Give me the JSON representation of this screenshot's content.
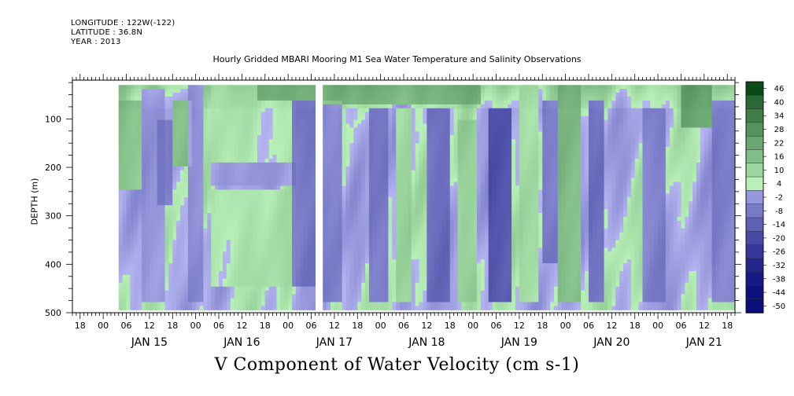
{
  "header": {
    "longitude": "LONGITUDE : 122W(-122)",
    "latitude": "LATITUDE : 36.8N",
    "year": "YEAR : 2013"
  },
  "chart_data": {
    "type": "heatmap",
    "title": "Hourly Gridded MBARI Mooring M1 Sea Water Temperature and Salinity Observations",
    "variable": "V Component of Water Velocity (cm s-1)",
    "ylabel": "DEPTH (m)",
    "ylim": [
      500,
      20
    ],
    "y_inverted": true,
    "y_ticks": [
      100,
      200,
      300,
      400,
      500
    ],
    "x_hours_per_day": 24,
    "x_range_hours": [
      -8,
      164
    ],
    "x_hour_tick_labels": [
      "00",
      "06",
      "12",
      "18"
    ],
    "x_day_labels": [
      "JAN 15",
      "JAN 16",
      "JAN 17",
      "JAN 18",
      "JAN 19",
      "JAN 20",
      "JAN 21"
    ],
    "data_start_hour": 4,
    "data_end_hour": 165,
    "data_depth_range": [
      30,
      490
    ],
    "gap_hours": [
      55,
      57
    ],
    "colorbar": {
      "levels": [
        -50,
        -44,
        -38,
        -32,
        -26,
        -20,
        -14,
        -8,
        -2,
        4,
        10,
        16,
        22,
        28,
        34,
        40,
        46
      ],
      "labels": [
        "46",
        "40",
        "34",
        "28",
        "22",
        "16",
        "10",
        "4",
        "-2",
        "-8",
        "-14",
        "-20",
        "-26",
        "-32",
        "-38",
        "-44",
        "-50"
      ],
      "colors": {
        "low": "#0b0f7a",
        "mid_low": "#b4b4f0",
        "mid_high": "#b8f0b8",
        "high": "#0a4a18"
      }
    },
    "regions": [
      {
        "t0": 4,
        "t1": 10,
        "d0": 60,
        "d1": 250,
        "v": 12
      },
      {
        "t0": 10,
        "t1": 16,
        "d0": 40,
        "d1": 480,
        "v": -6
      },
      {
        "t0": 14,
        "t1": 18,
        "d0": 100,
        "d1": 280,
        "v": -10
      },
      {
        "t0": 18,
        "t1": 23,
        "d0": 60,
        "d1": 200,
        "v": 14
      },
      {
        "t0": 22,
        "t1": 26,
        "d0": 30,
        "d1": 480,
        "v": -8
      },
      {
        "t0": 28,
        "t1": 50,
        "d0": 30,
        "d1": 190,
        "v": 3
      },
      {
        "t0": 28,
        "t1": 50,
        "d0": 190,
        "d1": 240,
        "v": -4
      },
      {
        "t0": 28,
        "t1": 50,
        "d0": 250,
        "d1": 450,
        "v": 4
      },
      {
        "t0": 40,
        "t1": 56,
        "d0": 25,
        "d1": 60,
        "v": 16
      },
      {
        "t0": 49,
        "t1": 55,
        "d0": 60,
        "d1": 450,
        "v": -12
      },
      {
        "t0": 57,
        "t1": 62,
        "d0": 60,
        "d1": 480,
        "v": -10
      },
      {
        "t0": 57,
        "t1": 98,
        "d0": 25,
        "d1": 70,
        "v": 14
      },
      {
        "t0": 69,
        "t1": 74,
        "d0": 80,
        "d1": 480,
        "v": -12
      },
      {
        "t0": 76,
        "t1": 80,
        "d0": 80,
        "d1": 480,
        "v": 8
      },
      {
        "t0": 84,
        "t1": 90,
        "d0": 80,
        "d1": 480,
        "v": -14
      },
      {
        "t0": 92,
        "t1": 97,
        "d0": 100,
        "d1": 480,
        "v": 8
      },
      {
        "t0": 100,
        "t1": 106,
        "d0": 80,
        "d1": 480,
        "v": -20
      },
      {
        "t0": 108,
        "t1": 113,
        "d0": 30,
        "d1": 480,
        "v": 6
      },
      {
        "t0": 114,
        "t1": 118,
        "d0": 60,
        "d1": 400,
        "v": -12
      },
      {
        "t0": 118,
        "t1": 124,
        "d0": 30,
        "d1": 480,
        "v": 14
      },
      {
        "t0": 126,
        "t1": 130,
        "d0": 60,
        "d1": 480,
        "v": -14
      },
      {
        "t0": 140,
        "t1": 146,
        "d0": 80,
        "d1": 480,
        "v": -10
      },
      {
        "t0": 150,
        "t1": 158,
        "d0": 25,
        "d1": 120,
        "v": 18
      },
      {
        "t0": 158,
        "t1": 165,
        "d0": 60,
        "d1": 480,
        "v": -10
      }
    ]
  }
}
